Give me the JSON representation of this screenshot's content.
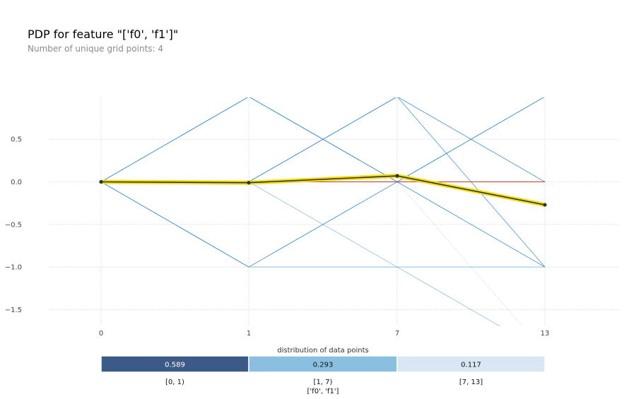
{
  "header": {
    "title": "PDP for feature \"['f0', 'f1']\"",
    "subtitle": "Number of unique grid points: 4"
  },
  "chart_data": {
    "type": "line",
    "title": "PDP for feature \"['f0', 'f1']\"",
    "subtitle": "Number of unique grid points: 4",
    "categories": [
      "0",
      "1",
      "7",
      "13"
    ],
    "y_ticks": [
      0.5,
      0.0,
      -0.5,
      -1.0,
      -1.5
    ],
    "y_tick_labels": [
      "0.5",
      "0.0",
      "−0.5",
      "−1.0",
      "−1.5"
    ],
    "ylim": [
      -1.68,
      1.0
    ],
    "grid": true,
    "series": [
      {
        "role": "pdp",
        "values": [
          0.0,
          -0.01,
          0.07,
          -0.27
        ],
        "color": "#1f3b2b",
        "highlight": "#ffd700"
      },
      {
        "role": "reference",
        "values": [
          0.0,
          0.0,
          0.0,
          0.0
        ],
        "color": "#c0392b"
      }
    ],
    "ice_lines": [
      {
        "values": [
          0.0,
          1.0,
          0.0,
          -1.0
        ],
        "opacity": 0.9
      },
      {
        "values": [
          0.0,
          1.0,
          0.0,
          1.0
        ],
        "opacity": 0.6
      },
      {
        "values": [
          0.0,
          -1.0,
          0.0,
          1.0
        ],
        "opacity": 0.9
      },
      {
        "values": [
          0.0,
          0.0,
          1.0,
          0.0
        ],
        "opacity": 0.9
      },
      {
        "values": [
          0.0,
          0.0,
          1.0,
          -1.0
        ],
        "opacity": 0.8
      },
      {
        "values": [
          0.0,
          -1.0,
          -1.0,
          -1.0
        ],
        "opacity": 0.6
      },
      {
        "values": [
          0.0,
          0.0,
          -1.0,
          -2.0
        ],
        "opacity": 0.5
      },
      {
        "values": [
          0.0,
          0.0,
          0.0,
          -2.0
        ],
        "opacity": 0.15
      }
    ],
    "ice_color": "#3a8dc9",
    "distribution": {
      "title": "distribution of data points",
      "xlabel": "['f0', 'f1']",
      "bins": [
        {
          "label": "[0, 1)",
          "value": "0.589",
          "color": "#3b5a88",
          "text_color": "#ffffff"
        },
        {
          "label": "[1, 7)",
          "value": "0.293",
          "color": "#8bbfdf",
          "text_color": "#111111"
        },
        {
          "label": "[7, 13]",
          "value": "0.117",
          "color": "#d9e6f4",
          "text_color": "#111111"
        }
      ]
    }
  }
}
